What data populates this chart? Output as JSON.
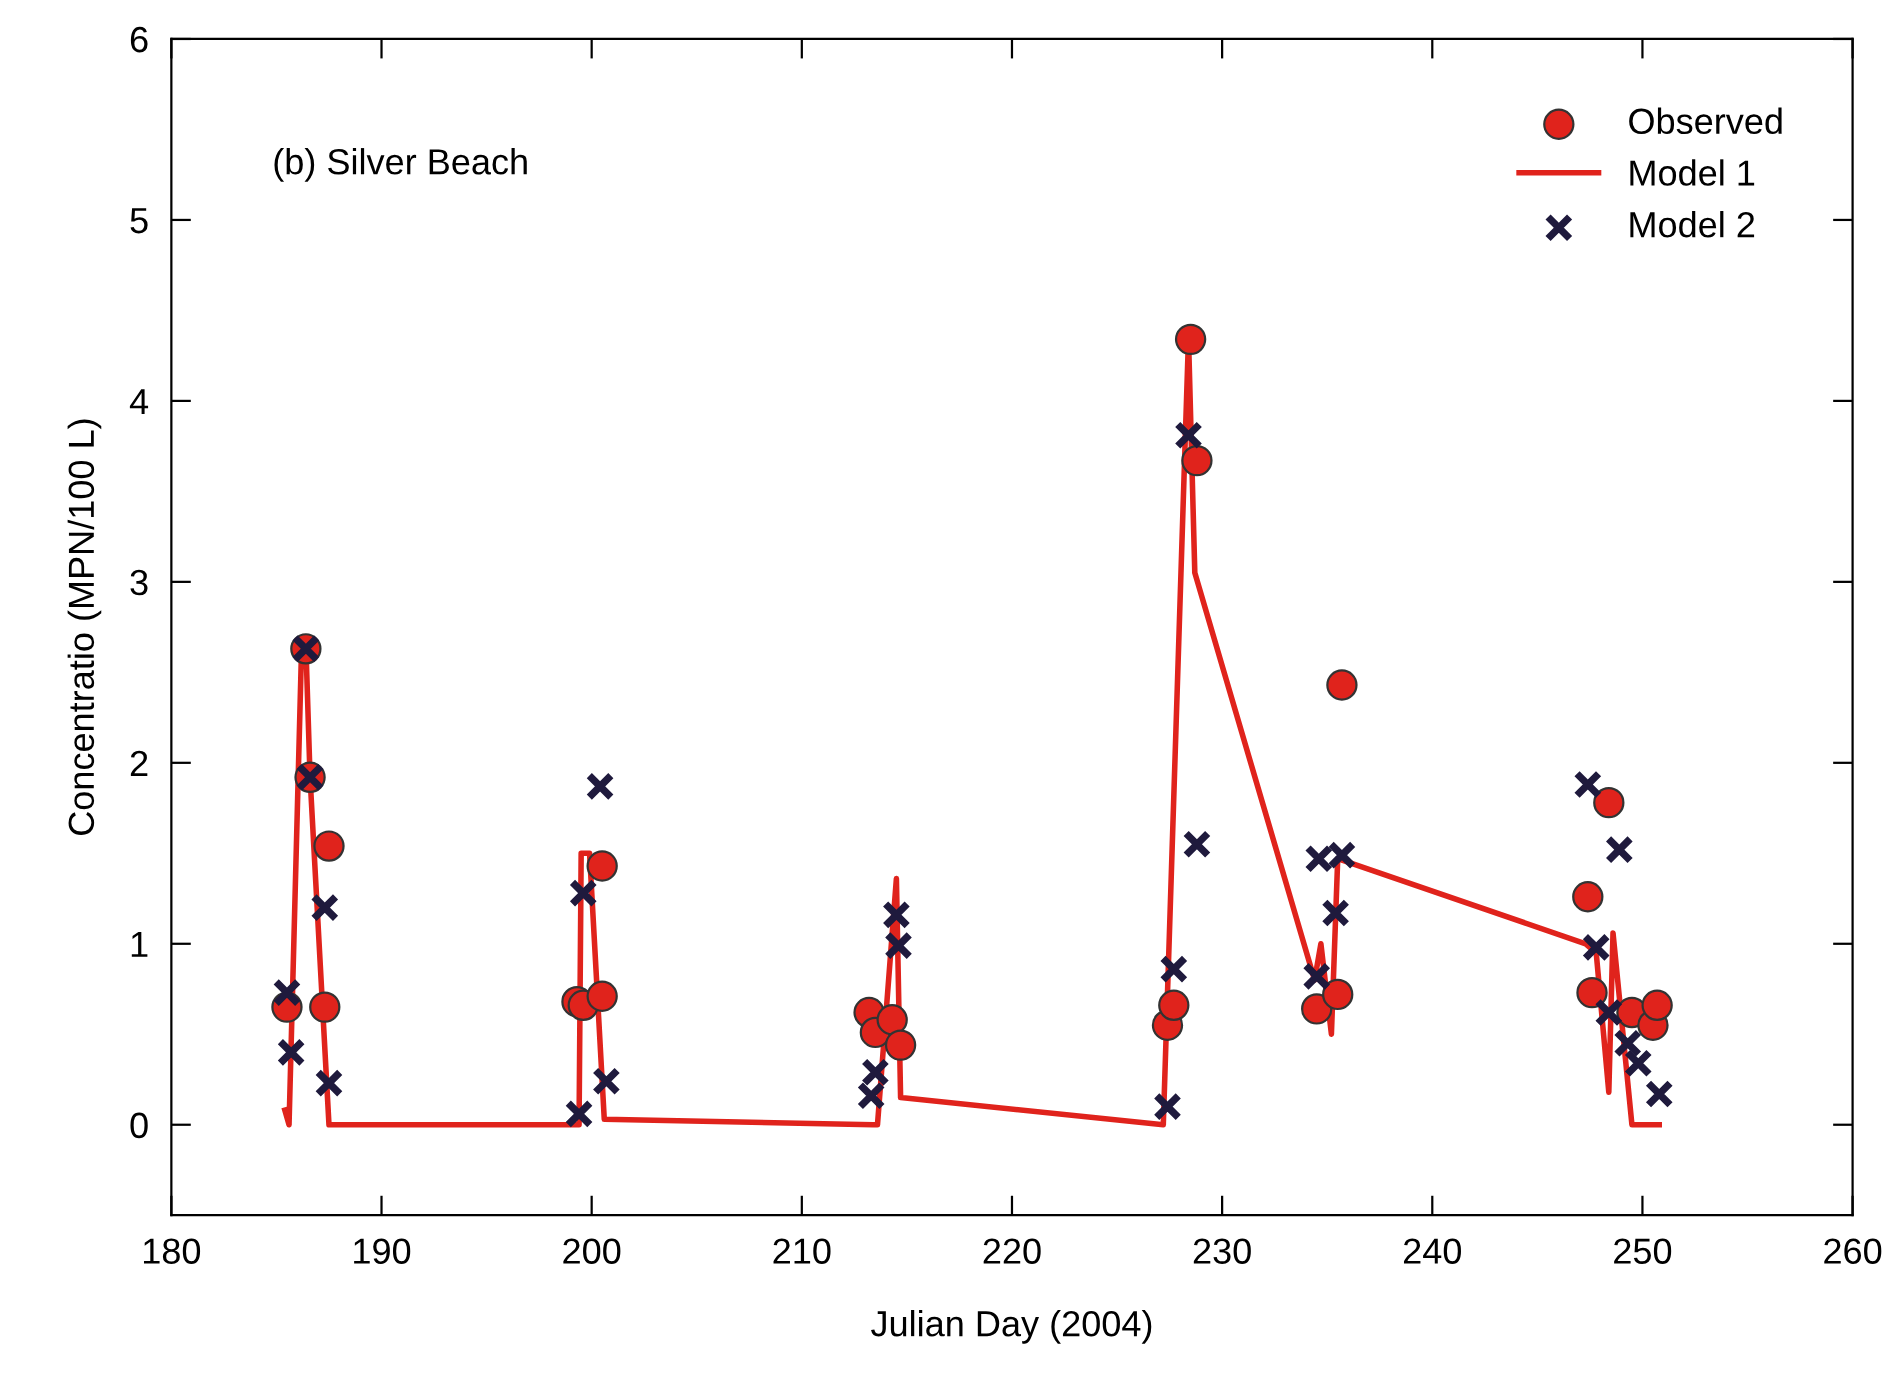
{
  "chart_data": {
    "type": "scatter",
    "xlabel": "Julian Day (2004)",
    "ylabel": "Concentratio (MPN/100 L)",
    "annotations": [
      "(b) Silver Beach"
    ],
    "xlim": [
      180,
      260
    ],
    "xticks": [
      180,
      190,
      200,
      210,
      220,
      230,
      240,
      250,
      260
    ],
    "ylim": [
      -0.5,
      6
    ],
    "yticks": [
      0,
      1,
      2,
      3,
      4,
      5,
      6
    ],
    "grid": false,
    "legend": "top right",
    "series": [
      {
        "name": "Observed",
        "marker": "circle",
        "color": "#e0231c",
        "x": [
          185.5,
          186.4,
          186.6,
          187.3,
          187.5,
          199.3,
          199.6,
          200.5,
          200.5,
          213.2,
          213.5,
          214.3,
          214.7,
          227.4,
          227.7,
          228.5,
          228.8,
          234.5,
          235.5,
          235.7,
          247.4,
          247.6,
          248.4,
          249.5,
          250.5,
          250.7
        ],
        "values": [
          0.65,
          2.63,
          1.92,
          0.65,
          1.54,
          0.68,
          0.66,
          1.43,
          0.71,
          0.62,
          0.51,
          0.58,
          0.44,
          0.55,
          0.66,
          4.34,
          3.67,
          0.64,
          0.72,
          2.43,
          1.26,
          0.73,
          1.78,
          0.62,
          0.55,
          0.66
        ]
      },
      {
        "name": "Model 1",
        "type": "line",
        "marker": "none",
        "line_style": "solid",
        "color": "#e0231c",
        "x": [
          185.4,
          185.6,
          186.2,
          186.4,
          186.6,
          187.5,
          199.4,
          199.5,
          199.9,
          200.6,
          213.4,
          213.6,
          214.5,
          214.7,
          227.2,
          228.4,
          228.7,
          234.4,
          234.7,
          235.2,
          235.5,
          247.3,
          247.8,
          248.4,
          248.6,
          249.5,
          250.8
        ],
        "values": [
          0.08,
          0.0,
          2.65,
          2.65,
          1.92,
          0.0,
          0.0,
          1.5,
          1.5,
          0.03,
          0.0,
          0.0,
          1.36,
          0.15,
          0.0,
          4.35,
          3.05,
          0.8,
          1.0,
          0.5,
          1.47,
          1.0,
          0.95,
          0.18,
          1.06,
          0.0,
          0.0
        ]
      },
      {
        "name": "Model 2",
        "marker": "cross",
        "color": "#1f1a3d",
        "x": [
          185.5,
          185.7,
          186.4,
          186.6,
          187.3,
          187.5,
          199.4,
          199.6,
          200.4,
          200.7,
          213.3,
          213.5,
          214.5,
          214.6,
          227.4,
          227.7,
          228.4,
          228.8,
          234.5,
          234.6,
          235.4,
          235.7,
          247.4,
          247.8,
          248.4,
          248.9,
          249.3,
          249.8,
          250.8
        ],
        "values": [
          0.73,
          0.4,
          2.63,
          1.92,
          1.2,
          0.23,
          0.06,
          1.28,
          1.87,
          0.24,
          0.16,
          0.29,
          1.16,
          0.99,
          0.1,
          0.86,
          3.81,
          1.55,
          0.82,
          1.47,
          1.17,
          1.49,
          1.88,
          0.98,
          0.62,
          1.52,
          0.45,
          0.34,
          0.17
        ]
      }
    ]
  }
}
